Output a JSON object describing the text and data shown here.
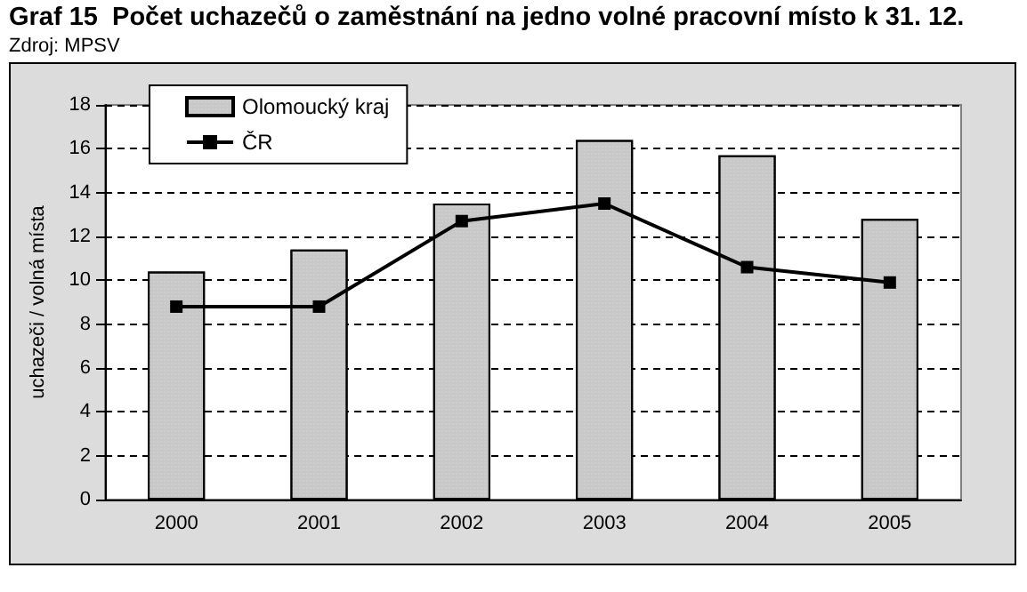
{
  "chart_data": {
    "type": "bar",
    "title": "Graf 15  Počet uchazečů o zaměstnání na jedno volné pracovní místo k 31. 12.",
    "annotations": [
      "Zdroj: MPSV"
    ],
    "ylabel": "uchazeči / volná místa",
    "categories": [
      "2000",
      "2001",
      "2002",
      "2003",
      "2004",
      "2005"
    ],
    "series": [
      {
        "name": "Olomoucký kraj",
        "color": "#c8c8c8",
        "values": [
          10.4,
          11.4,
          13.5,
          16.4,
          15.7,
          12.8
        ]
      },
      {
        "name": "ČR",
        "type": "line",
        "color": "#000000",
        "marker": "square",
        "values": [
          8.8,
          8.8,
          12.7,
          13.5,
          10.6,
          9.9
        ]
      }
    ],
    "ylim": [
      0,
      18
    ],
    "yticks": [
      0,
      2,
      4,
      6,
      8,
      10,
      12,
      14,
      16,
      18
    ],
    "grid": "y",
    "legend": "top left"
  }
}
